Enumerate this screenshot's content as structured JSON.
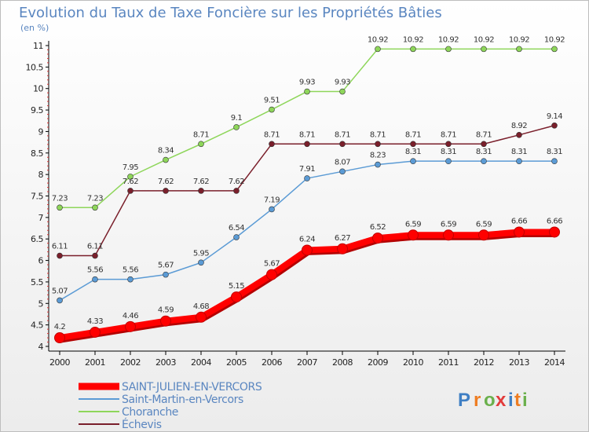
{
  "chart_data": {
    "type": "line",
    "title": "Evolution du Taux de Taxe Foncière sur les Propriétés Bâties",
    "subtitle": "(en %)",
    "x": [
      "2000",
      "2001",
      "2002",
      "2003",
      "2004",
      "2005",
      "2006",
      "2007",
      "2008",
      "2009",
      "2010",
      "2011",
      "2012",
      "2013",
      "2014"
    ],
    "ylim": [
      4,
      11
    ],
    "yticks": [
      "4",
      "4.5",
      "5",
      "5.5",
      "6",
      "6.5",
      "7",
      "7.5",
      "8",
      "8.5",
      "9",
      "9.5",
      "10",
      "10.5",
      "11"
    ],
    "grid": false,
    "legend_position": "bottom-left",
    "series": [
      {
        "name": "SAINT-JULIEN-EN-VERCORS",
        "color": "#ff0000",
        "values": [
          4.2,
          4.33,
          4.46,
          4.59,
          4.68,
          5.15,
          5.67,
          6.24,
          6.27,
          6.52,
          6.59,
          6.59,
          6.59,
          6.66,
          6.66
        ],
        "labels": [
          "4.2",
          "4.33",
          "4.46",
          "4.59",
          "4.68",
          "5.15",
          "5.67",
          "6.24",
          "6.27",
          "6.52",
          "6.59",
          "6.59",
          "6.59",
          "6.66",
          "6.66"
        ]
      },
      {
        "name": "Saint-Martin-en-Vercors",
        "color": "#5b9bd5",
        "values": [
          5.07,
          5.56,
          5.56,
          5.67,
          5.95,
          6.54,
          7.19,
          7.91,
          8.07,
          8.23,
          8.31,
          8.31,
          8.31,
          8.31,
          8.31
        ],
        "labels": [
          "5.07",
          "5.56",
          "5.56",
          "5.67",
          "5.95",
          "6.54",
          "7.19",
          "7.91",
          "8.07",
          "8.23",
          "8.31",
          "8.31",
          "8.31",
          "8.31",
          "8.31"
        ]
      },
      {
        "name": "Choranche",
        "color": "#8ed65a",
        "values": [
          7.23,
          7.23,
          7.95,
          8.34,
          8.71,
          9.1,
          9.51,
          9.93,
          9.93,
          10.92,
          10.92,
          10.92,
          10.92,
          10.92,
          10.92
        ],
        "labels": [
          "7.23",
          "7.23",
          "7.95",
          "8.34",
          "8.71",
          "9.1",
          "9.51",
          "9.93",
          "9.93",
          "10.92",
          "10.92",
          "10.92",
          "10.92",
          "10.92",
          "10.92"
        ]
      },
      {
        "name": "Échevis",
        "color": "#7a1f2b",
        "values": [
          6.11,
          6.11,
          7.62,
          7.62,
          7.62,
          7.62,
          8.71,
          8.71,
          8.71,
          8.71,
          8.71,
          8.71,
          8.71,
          8.92,
          9.14
        ],
        "labels": [
          "6.11",
          "6.11",
          "7.62",
          "7.62",
          "7.62",
          "7.62",
          "8.71",
          "8.71",
          "8.71",
          "8.71",
          "8.71",
          "8.71",
          "8.71",
          "8.92",
          "9.14"
        ]
      }
    ]
  },
  "branding": {
    "logo_text": "Proxiti",
    "letters": [
      "P",
      "r",
      "o",
      "x",
      "i",
      "t",
      "i"
    ],
    "colors": [
      "#3f7fc4",
      "#ee7d22",
      "#6ab04c",
      "#e23b3b",
      "#3f7fc4",
      "#ee7d22",
      "#6ab04c"
    ]
  }
}
